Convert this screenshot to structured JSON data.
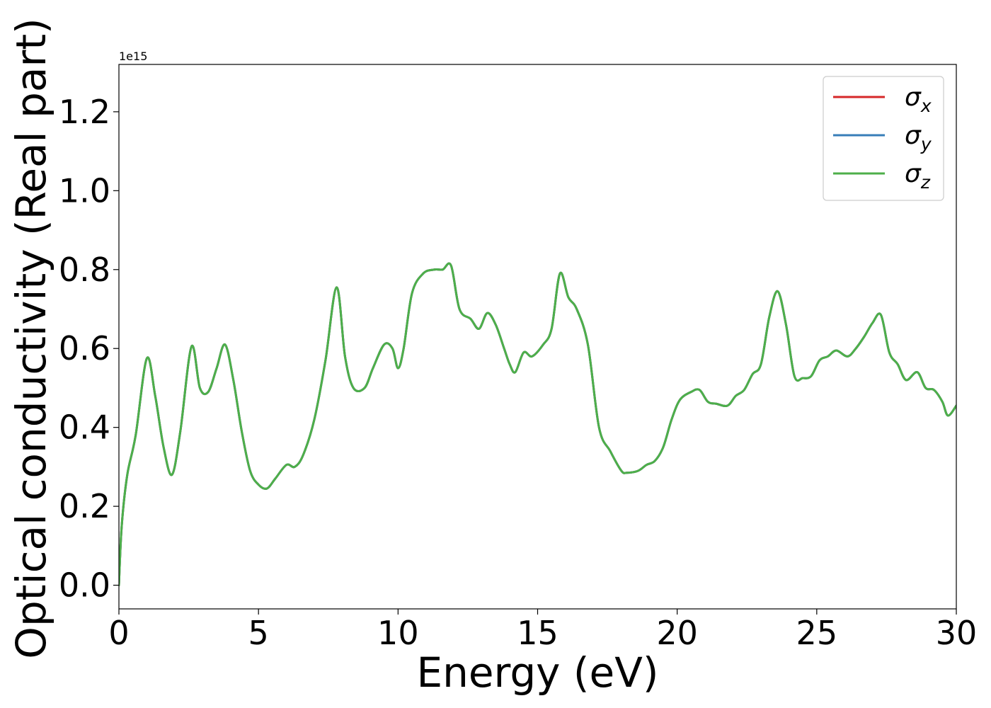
{
  "chart_data": {
    "type": "line",
    "title": "",
    "xlabel": "Energy (eV)",
    "ylabel": "Optical conductivity (Real part)",
    "y_offset_label": "1e15",
    "xlim": [
      0,
      30
    ],
    "ylim": [
      -0.06,
      1.32
    ],
    "x_ticks": [
      0,
      5,
      10,
      15,
      20,
      25,
      30
    ],
    "x_tick_labels": [
      "0",
      "5",
      "10",
      "15",
      "20",
      "25",
      "30"
    ],
    "y_ticks": [
      0.0,
      0.2,
      0.4,
      0.6,
      0.8,
      1.0,
      1.2
    ],
    "y_tick_labels": [
      "0.0",
      "0.2",
      "0.4",
      "0.6",
      "0.8",
      "1.0",
      "1.2"
    ],
    "grid": false,
    "legend_position": "top-right",
    "x": [
      0,
      0.1,
      0.3,
      0.6,
      1.0,
      1.3,
      1.6,
      1.9,
      2.2,
      2.6,
      2.9,
      3.2,
      3.5,
      3.8,
      4.1,
      4.4,
      4.7,
      5.0,
      5.3,
      5.6,
      6.0,
      6.3,
      6.6,
      7.0,
      7.4,
      7.8,
      8.1,
      8.4,
      8.8,
      9.1,
      9.5,
      9.8,
      10.0,
      10.2,
      10.5,
      10.9,
      11.3,
      11.6,
      11.9,
      12.2,
      12.6,
      12.9,
      13.2,
      13.5,
      13.8,
      14.0,
      14.2,
      14.5,
      14.8,
      15.2,
      15.5,
      15.8,
      16.1,
      16.4,
      16.8,
      17.2,
      17.6,
      18.0,
      18.2,
      18.6,
      18.9,
      19.2,
      19.5,
      19.8,
      20.1,
      20.5,
      20.8,
      21.1,
      21.4,
      21.8,
      22.1,
      22.4,
      22.7,
      23.0,
      23.3,
      23.6,
      23.9,
      24.2,
      24.5,
      24.8,
      25.1,
      25.4,
      25.7,
      26.1,
      26.4,
      26.7,
      27.0,
      27.3,
      27.6,
      27.9,
      28.2,
      28.6,
      28.9,
      29.2,
      29.5,
      29.7,
      30.0
    ],
    "series": [
      {
        "name": "σx",
        "color": "#d62728",
        "values": [
          0.0,
          0.15,
          0.28,
          0.38,
          0.575,
          0.48,
          0.35,
          0.28,
          0.39,
          0.605,
          0.5,
          0.49,
          0.55,
          0.61,
          0.52,
          0.39,
          0.29,
          0.255,
          0.245,
          0.27,
          0.305,
          0.3,
          0.33,
          0.42,
          0.57,
          0.755,
          0.58,
          0.5,
          0.5,
          0.55,
          0.61,
          0.6,
          0.55,
          0.6,
          0.74,
          0.79,
          0.8,
          0.8,
          0.81,
          0.7,
          0.675,
          0.65,
          0.69,
          0.66,
          0.6,
          0.56,
          0.54,
          0.59,
          0.58,
          0.61,
          0.65,
          0.79,
          0.73,
          0.7,
          0.61,
          0.4,
          0.34,
          0.29,
          0.285,
          0.29,
          0.305,
          0.315,
          0.35,
          0.42,
          0.47,
          0.49,
          0.495,
          0.465,
          0.46,
          0.455,
          0.48,
          0.495,
          0.535,
          0.56,
          0.68,
          0.745,
          0.66,
          0.53,
          0.525,
          0.53,
          0.57,
          0.58,
          0.595,
          0.58,
          0.6,
          0.63,
          0.665,
          0.685,
          0.59,
          0.56,
          0.52,
          0.54,
          0.5,
          0.495,
          0.465,
          0.43,
          0.455
        ]
      },
      {
        "name": "σy",
        "color": "#377eb8",
        "values": [
          0.0,
          0.15,
          0.28,
          0.38,
          0.575,
          0.48,
          0.35,
          0.28,
          0.39,
          0.605,
          0.5,
          0.49,
          0.55,
          0.61,
          0.52,
          0.39,
          0.29,
          0.255,
          0.245,
          0.27,
          0.305,
          0.3,
          0.33,
          0.42,
          0.57,
          0.755,
          0.58,
          0.5,
          0.5,
          0.55,
          0.61,
          0.6,
          0.55,
          0.6,
          0.74,
          0.79,
          0.8,
          0.8,
          0.81,
          0.7,
          0.675,
          0.65,
          0.69,
          0.66,
          0.6,
          0.56,
          0.54,
          0.59,
          0.58,
          0.61,
          0.65,
          0.79,
          0.73,
          0.7,
          0.61,
          0.4,
          0.34,
          0.29,
          0.285,
          0.29,
          0.305,
          0.315,
          0.35,
          0.42,
          0.47,
          0.49,
          0.495,
          0.465,
          0.46,
          0.455,
          0.48,
          0.495,
          0.535,
          0.56,
          0.68,
          0.745,
          0.66,
          0.53,
          0.525,
          0.53,
          0.57,
          0.58,
          0.595,
          0.58,
          0.6,
          0.63,
          0.665,
          0.685,
          0.59,
          0.56,
          0.52,
          0.54,
          0.5,
          0.495,
          0.465,
          0.43,
          0.455
        ]
      },
      {
        "name": "σz",
        "color": "#4daf4a",
        "values": [
          0.0,
          0.15,
          0.28,
          0.38,
          0.575,
          0.48,
          0.35,
          0.28,
          0.39,
          0.605,
          0.5,
          0.49,
          0.55,
          0.61,
          0.52,
          0.39,
          0.29,
          0.255,
          0.245,
          0.27,
          0.305,
          0.3,
          0.33,
          0.42,
          0.57,
          0.755,
          0.58,
          0.5,
          0.5,
          0.55,
          0.61,
          0.6,
          0.55,
          0.6,
          0.74,
          0.79,
          0.8,
          0.8,
          0.81,
          0.7,
          0.675,
          0.65,
          0.69,
          0.66,
          0.6,
          0.56,
          0.54,
          0.59,
          0.58,
          0.61,
          0.65,
          0.79,
          0.73,
          0.7,
          0.61,
          0.4,
          0.34,
          0.29,
          0.285,
          0.29,
          0.305,
          0.315,
          0.35,
          0.42,
          0.47,
          0.49,
          0.495,
          0.465,
          0.46,
          0.455,
          0.48,
          0.495,
          0.535,
          0.56,
          0.68,
          0.745,
          0.66,
          0.53,
          0.525,
          0.53,
          0.57,
          0.58,
          0.595,
          0.58,
          0.6,
          0.63,
          0.665,
          0.685,
          0.59,
          0.56,
          0.52,
          0.54,
          0.5,
          0.495,
          0.465,
          0.43,
          0.455
        ]
      }
    ],
    "legend": [
      {
        "symbol": "σ",
        "sub": "x"
      },
      {
        "symbol": "σ",
        "sub": "y"
      },
      {
        "symbol": "σ",
        "sub": "z"
      }
    ]
  }
}
